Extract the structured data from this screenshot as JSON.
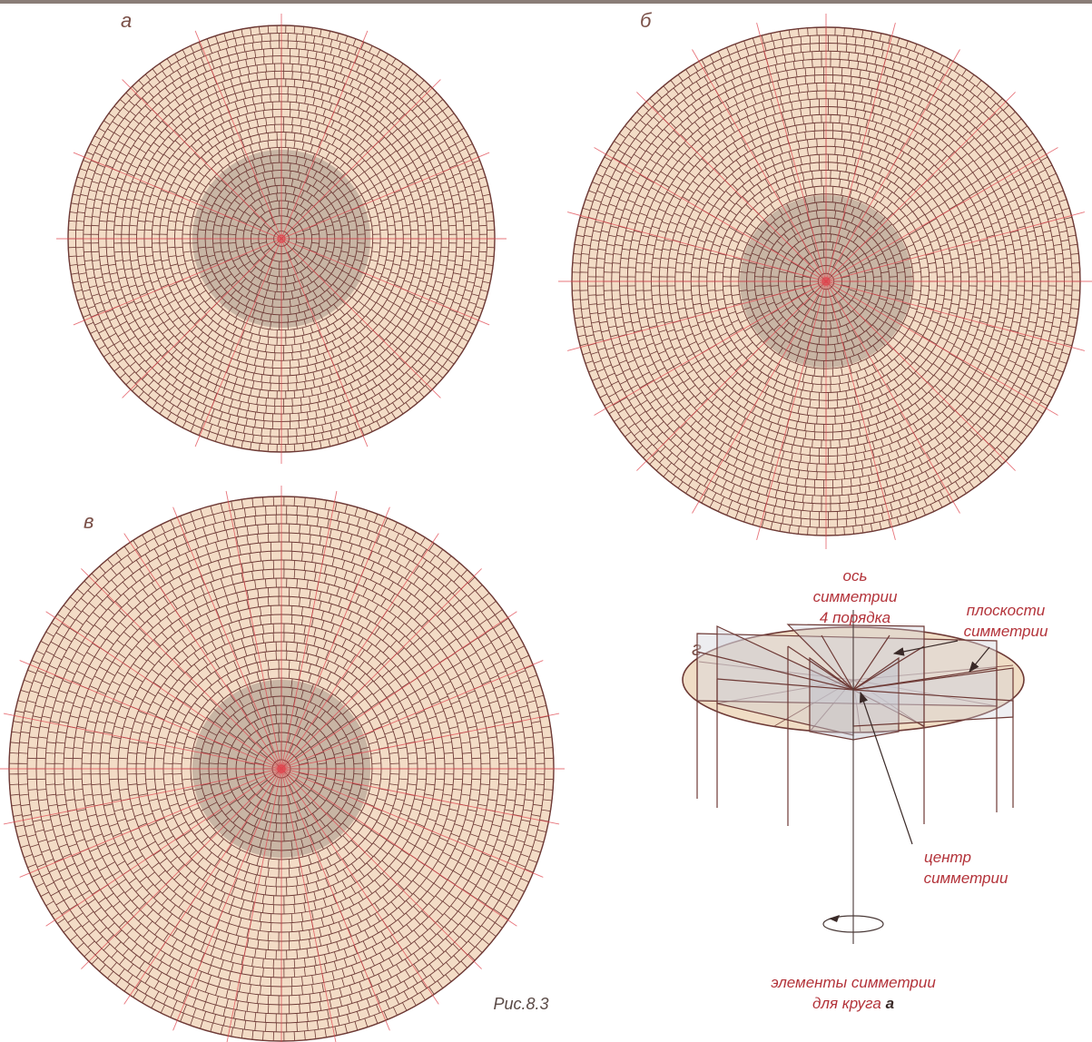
{
  "panels": {
    "a": {
      "letter": "а"
    },
    "b": {
      "letter": "б"
    },
    "v": {
      "letter": "в"
    },
    "g": {
      "letter": "г"
    }
  },
  "diagram_labels": {
    "axis_line1": "ось",
    "axis_line2": "симметрии",
    "axis_line3": "4 порядка",
    "planes_line1": "плоскости",
    "planes_line2": "симметрии",
    "center_line1": "центр",
    "center_line2": "симметрии",
    "elements_line1": "элементы симметрии",
    "elements_line2": "для круга",
    "elements_circle_letter": "а"
  },
  "caption": "Рис.8.3",
  "colors": {
    "paving_fill": "#f3dcc6",
    "inner_fill": "#c8b5a4",
    "brick_line": "#6e3a36",
    "axis_red": "#e0464f",
    "label_red": "#b3333a",
    "base_fill": "#f0ddc5"
  }
}
